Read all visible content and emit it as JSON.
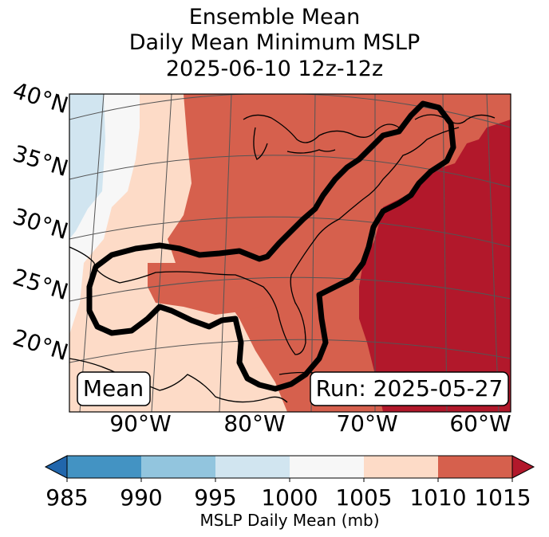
{
  "title": {
    "line1": "Ensemble Mean",
    "line2": "Daily Mean Minimum MSLP",
    "line3": "2025-06-10 12z-12z"
  },
  "map": {
    "lat_labels": [
      "40°N",
      "35°N",
      "30°N",
      "25°N",
      "20°N"
    ],
    "lon_labels": [
      "90°W",
      "80°W",
      "70°W",
      "60°W"
    ],
    "mean_box": "Mean",
    "run_box": "Run: 2025-05-27",
    "outline_description_color": "#000000"
  },
  "colorbar": {
    "ticks": [
      "985",
      "990",
      "995",
      "1000",
      "1005",
      "1010",
      "1015"
    ],
    "label": "MSLP Daily Mean (mb)",
    "colors": [
      "#2166ac",
      "#4393c3",
      "#92c5de",
      "#d1e5f0",
      "#f7f7f7",
      "#fddbc7",
      "#d6604d",
      "#b2182b"
    ]
  }
}
